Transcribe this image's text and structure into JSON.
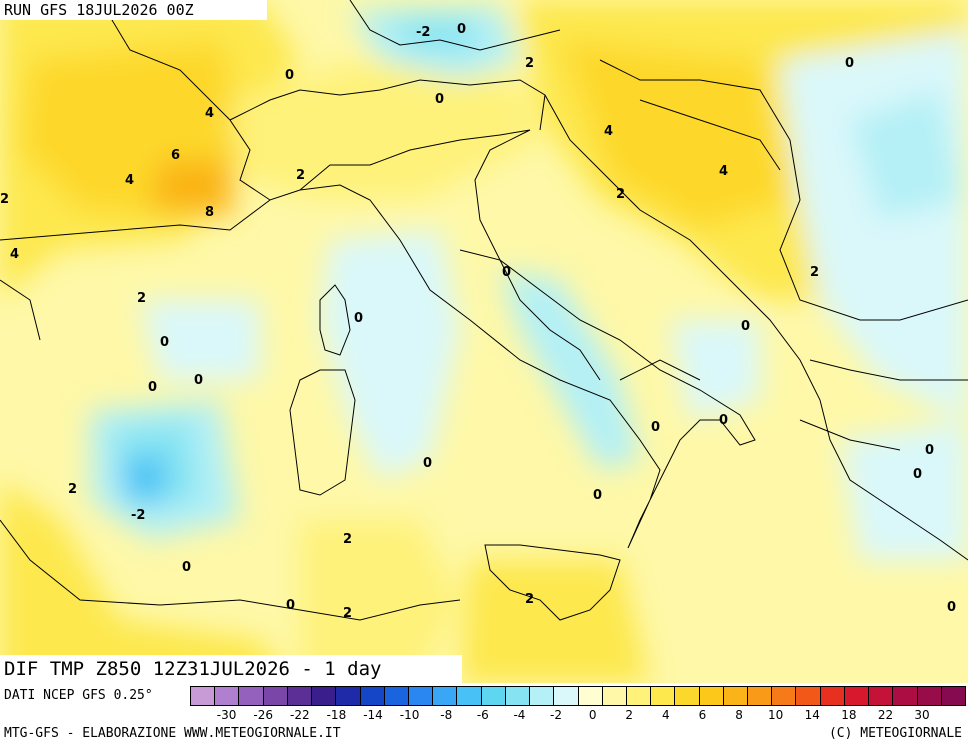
{
  "header": {
    "run_label": "RUN GFS 18JUL2026 00Z"
  },
  "map_title": "DIF TMP Z850 12Z31JUL2026 - 1 day",
  "source_label": "DATI NCEP GFS 0.25°",
  "credits": {
    "left": "MTG-GFS - ELABORAZIONE WWW.METEOGIORNALE.IT",
    "right": "(C) METEOGIORNALE"
  },
  "legend": {
    "colors": [
      "#c89ad6",
      "#b07fcf",
      "#9462bd",
      "#7a47a8",
      "#5c2f96",
      "#3a1f8c",
      "#1e2aa8",
      "#1546c8",
      "#1a64e0",
      "#2a86f0",
      "#3aa6f6",
      "#48c2f6",
      "#5ed6f0",
      "#86e4f2",
      "#b4f0f6",
      "#daf8fa",
      "#fefed0",
      "#fef8a8",
      "#fef27a",
      "#fde84e",
      "#fdd82c",
      "#fcc81a",
      "#fbb418",
      "#f99a18",
      "#f67a18",
      "#f25818",
      "#e83020",
      "#d8182c",
      "#c41238",
      "#ac0e44",
      "#980c4a",
      "#860a50"
    ],
    "tick_labels": [
      "-30",
      "-26",
      "-22",
      "-18",
      "-14",
      "-10",
      "-8",
      "-6",
      "-4",
      "-2",
      "0",
      "2",
      "4",
      "6",
      "8",
      "10",
      "14",
      "18",
      "22",
      "30"
    ]
  },
  "contour_labels": [
    "-2",
    "0",
    "2",
    "0",
    "0",
    "4",
    "6",
    "4",
    "8",
    "2",
    "2",
    "4",
    "0",
    "4",
    "2",
    "4",
    "2",
    "2",
    "0",
    "0",
    "0",
    "0",
    "0",
    "0",
    "0",
    "0",
    "0",
    "2",
    "-2",
    "0",
    "2",
    "0",
    "2",
    "2",
    "0",
    "0",
    "0"
  ]
}
